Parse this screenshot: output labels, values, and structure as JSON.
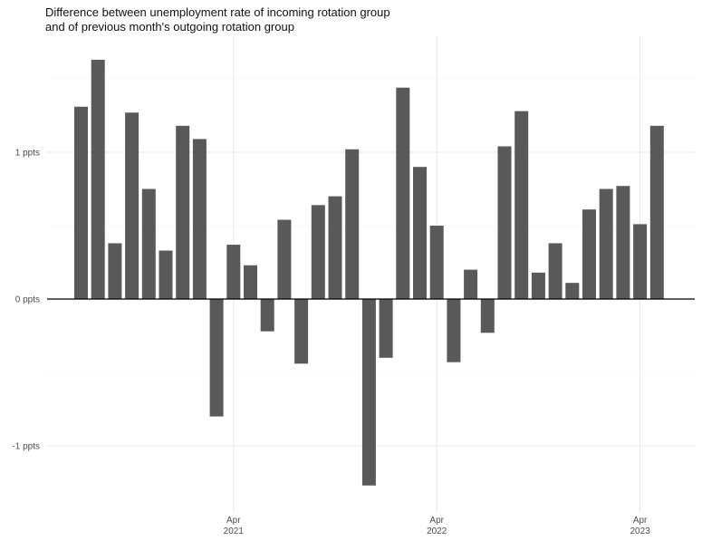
{
  "chart_data": {
    "type": "bar",
    "title_lines": [
      "Difference between unemployment rate of incoming rotation group",
      "and of previous month's outgoing rotation group"
    ],
    "xlabel": "",
    "ylabel": "",
    "ylim": [
      -1.45,
      1.75
    ],
    "y_ticks": [
      {
        "value": -1,
        "label": "-1 ppts"
      },
      {
        "value": 0,
        "label": "0 ppts"
      },
      {
        "value": 1,
        "label": "1 ppts"
      }
    ],
    "x_ticks": [
      {
        "month_index": 9,
        "label_top": "Apr",
        "label_bottom": "2021"
      },
      {
        "month_index": 21,
        "label_top": "Apr",
        "label_bottom": "2022"
      },
      {
        "month_index": 33,
        "label_top": "Apr",
        "label_bottom": "2023"
      }
    ],
    "grid": true,
    "bar_color": "#595959",
    "values": [
      1.31,
      1.63,
      0.38,
      1.27,
      0.75,
      0.33,
      1.18,
      1.09,
      -0.8,
      0.37,
      0.23,
      -0.22,
      0.54,
      -0.44,
      0.64,
      0.7,
      1.02,
      -1.27,
      -0.4,
      1.44,
      0.9,
      0.5,
      -0.43,
      0.2,
      -0.23,
      1.04,
      1.28,
      0.18,
      0.38,
      0.11,
      0.61,
      0.75,
      0.77,
      0.51,
      1.18
    ]
  }
}
